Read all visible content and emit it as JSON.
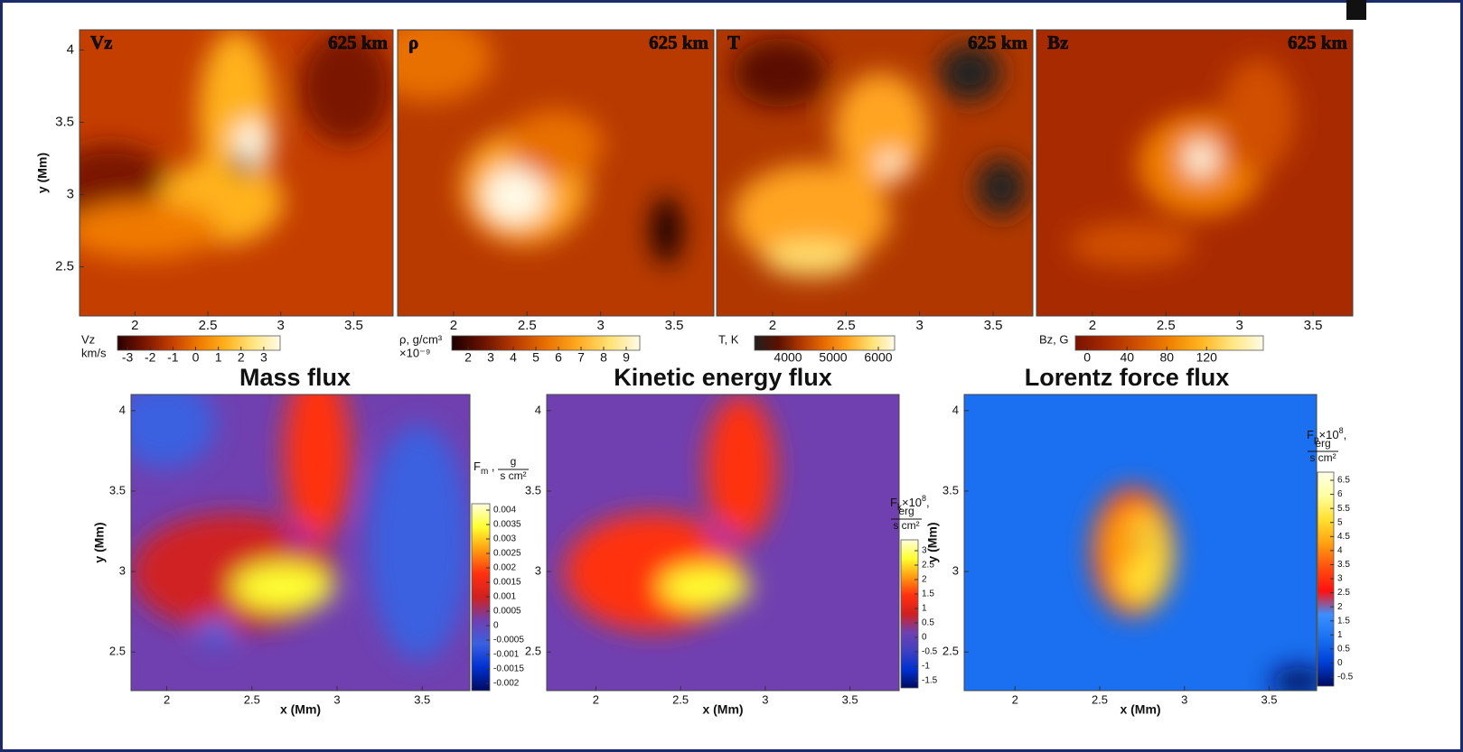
{
  "chart_data": [
    {
      "type": "heatmap",
      "label": "Vz",
      "height_label": "625 km",
      "xlim": [
        1.62,
        3.77
      ],
      "ylim": [
        2.16,
        4.14
      ],
      "xticks": [
        2,
        2.5,
        3,
        3.5
      ],
      "yticks": [
        2.5,
        3,
        3.5,
        4
      ],
      "ylabel": "y (Mm)",
      "colorbar": {
        "orientation": "horizontal",
        "label_lines": [
          "Vz",
          "km/s"
        ],
        "clim": [
          -3.44,
          3.72
        ],
        "ticks": [
          -3,
          -2,
          -1,
          0,
          1,
          2,
          3
        ],
        "colormap": [
          "#2a0000",
          "#7a1500",
          "#c43e00",
          "#f07a00",
          "#ffb21e",
          "#ffe580",
          "#fffbe8"
        ]
      }
    },
    {
      "type": "heatmap",
      "label": "ρ",
      "height_label": "625 km",
      "xlim": [
        1.62,
        3.77
      ],
      "ylim": [
        2.16,
        4.14
      ],
      "xticks": [
        2,
        2.5,
        3,
        3.5
      ],
      "colorbar": {
        "orientation": "horizontal",
        "label_lines": [
          "ρ, g/cm³",
          "×10⁻⁹"
        ],
        "clim": [
          1.28,
          9.6
        ],
        "ticks": [
          2,
          3,
          4,
          5,
          6,
          7,
          8,
          9
        ],
        "colormap": [
          "#1a0000",
          "#6a1200",
          "#b83a00",
          "#e87000",
          "#ffa820",
          "#ffe070",
          "#fffbe8"
        ]
      }
    },
    {
      "type": "heatmap",
      "label": "T",
      "height_label": "625 km",
      "xlim": [
        1.62,
        3.77
      ],
      "ylim": [
        2.16,
        4.14
      ],
      "xticks": [
        2,
        2.5,
        3,
        3.5
      ],
      "colorbar": {
        "orientation": "horizontal",
        "label_lines": [
          "T, K"
        ],
        "clim": [
          3260,
          6360
        ],
        "ticks": [
          4000,
          5000,
          6000
        ],
        "colormap": [
          "#202020",
          "#5a1000",
          "#b03800",
          "#e86c00",
          "#ffa420",
          "#ffe070",
          "#fffbe8"
        ]
      }
    },
    {
      "type": "heatmap",
      "label": "Bz",
      "height_label": "625 km",
      "xlim": [
        1.62,
        3.77
      ],
      "ylim": [
        2.16,
        4.14
      ],
      "xticks": [
        2,
        2.5,
        3,
        3.5
      ],
      "colorbar": {
        "orientation": "horizontal",
        "label_lines": [
          "Bz, G"
        ],
        "clim": [
          -12,
          177
        ],
        "ticks": [
          0,
          40,
          80,
          120
        ],
        "colormap": [
          "#7a1200",
          "#a82a00",
          "#d05000",
          "#f08000",
          "#ffb420",
          "#ffe680",
          "#fffbe8"
        ]
      }
    },
    {
      "type": "heatmap",
      "title": "Mass flux",
      "xlim": [
        1.79,
        3.78
      ],
      "ylim": [
        2.26,
        4.1
      ],
      "xticks": [
        2,
        2.5,
        3,
        3.5
      ],
      "yticks": [
        2.5,
        3,
        3.5,
        4
      ],
      "xlabel": "x (Mm)",
      "ylabel": "y (Mm)",
      "colorbar": {
        "orientation": "vertical",
        "label_parts": [
          {
            "text": "F"
          },
          {
            "text": "m",
            "style": "sub"
          },
          {
            "text": " ,"
          }
        ],
        "unit_num": "g",
        "unit_den": "s cm²",
        "clim": [
          -0.00225,
          0.00422
        ],
        "ticks": [
          -0.002,
          -0.0015,
          -0.001,
          -0.0005,
          0,
          0.0005,
          0.001,
          0.0015,
          0.002,
          0.0025,
          0.003,
          0.0035,
          0.004
        ],
        "colormap": [
          "#000a60",
          "#0030d0",
          "#3a60e0",
          "#7040b0",
          "#d02020",
          "#ff3010",
          "#ff9a10",
          "#ffff30",
          "#ffffe0"
        ]
      }
    },
    {
      "type": "heatmap",
      "title": "Kinetic energy flux",
      "xlim": [
        1.71,
        3.79
      ],
      "ylim": [
        2.26,
        4.1
      ],
      "xticks": [
        2,
        2.5,
        3,
        3.5
      ],
      "yticks": [
        2.5,
        3,
        3.5,
        4
      ],
      "xlabel": "x (Mm)",
      "colorbar": {
        "orientation": "vertical",
        "label_parts": [
          {
            "text": "F"
          },
          {
            "text": "k",
            "style": "sub"
          },
          {
            "text": "×10"
          },
          {
            "text": "8",
            "style": "sup"
          },
          {
            "text": ","
          }
        ],
        "unit_num": "erg",
        "unit_den": "s cm²",
        "clim": [
          -1.75,
          3.375
        ],
        "ticks": [
          -1.5,
          -1,
          -0.5,
          0,
          0.5,
          1,
          1.5,
          2,
          2.5,
          3
        ],
        "colormap": [
          "#000a60",
          "#0030d0",
          "#4040c0",
          "#7040b0",
          "#d02020",
          "#ff3010",
          "#ff9a10",
          "#ffff30",
          "#ffffe0"
        ]
      }
    },
    {
      "type": "heatmap",
      "title": "Lorentz force flux",
      "xlim": [
        1.7,
        3.78
      ],
      "ylim": [
        2.26,
        4.1
      ],
      "xticks": [
        2,
        2.5,
        3,
        3.5
      ],
      "yticks": [
        2.5,
        3,
        3.5,
        4
      ],
      "xlabel": "x (Mm)",
      "ylabel": "y (Mm)",
      "colorbar": {
        "orientation": "vertical",
        "label_parts": [
          {
            "text": "F"
          },
          {
            "text": "p",
            "style": "sub"
          },
          {
            "text": "×10"
          },
          {
            "text": "8",
            "style": "sup"
          },
          {
            "text": ","
          }
        ],
        "unit_num": "erg",
        "unit_den": "s cm²",
        "clim": [
          -0.82,
          6.79
        ],
        "ticks": [
          -0.5,
          0,
          0.5,
          1,
          1.5,
          2,
          2.5,
          3,
          3.5,
          4,
          4.5,
          5,
          5.5,
          6,
          6.5
        ],
        "colormap": [
          "#000a60",
          "#0040d8",
          "#1a70f0",
          "#3a90ff",
          "#ff1010",
          "#ff5010",
          "#ffa010",
          "#ffe030",
          "#ffffa0",
          "#ffffe8"
        ]
      }
    }
  ]
}
